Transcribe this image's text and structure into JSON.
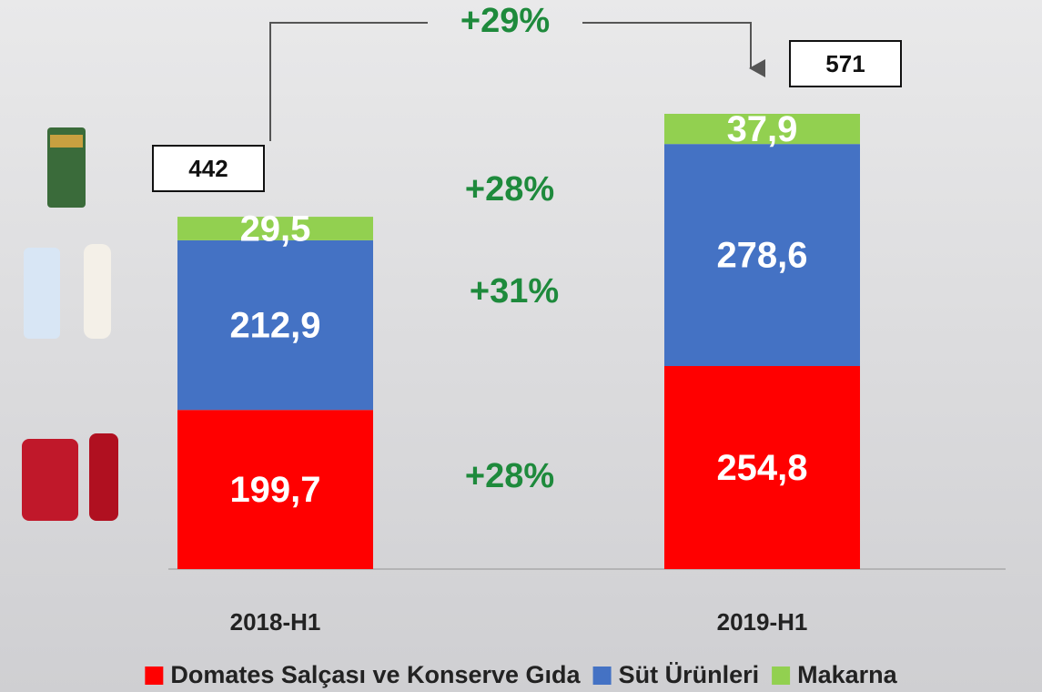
{
  "chart_data": {
    "type": "stacked_bar",
    "categories": [
      "2018-H1",
      "2019-H1"
    ],
    "series": [
      {
        "name": "Domates Salçası ve Konserve Gıda",
        "color": "#ff0000",
        "values": [
          199.7,
          254.8
        ],
        "value_labels": [
          "199,7",
          "254,8"
        ]
      },
      {
        "name": "Süt Ürünleri",
        "color": "#4472c4",
        "values": [
          212.9,
          278.6
        ],
        "value_labels": [
          "212,9",
          "278,6"
        ]
      },
      {
        "name": "Makarna",
        "color": "#92d050",
        "values": [
          29.5,
          37.9
        ],
        "value_labels": [
          "29,5",
          "37,9"
        ]
      }
    ],
    "totals": [
      442,
      571
    ],
    "total_growth": "+29%",
    "series_growth": [
      "+28%",
      "+31%",
      "+28%"
    ],
    "legend": "bottom"
  }
}
